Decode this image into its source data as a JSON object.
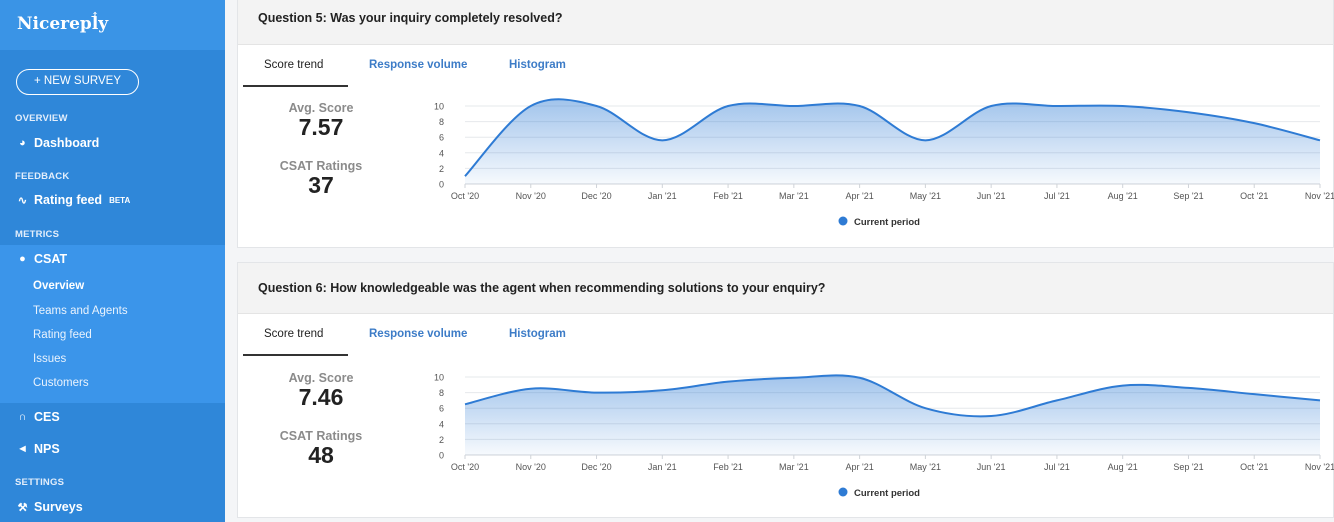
{
  "sidebar": {
    "brand": "Nicereply",
    "new_survey": "+ NEW SURVEY",
    "sections": {
      "overview": "OVERVIEW",
      "feedback": "FEEDBACK",
      "metrics": "METRICS",
      "settings": "SETTINGS"
    },
    "dashboard": "Dashboard",
    "rating_feed": "Rating feed",
    "beta": "BETA",
    "csat": "CSAT",
    "csat_sub": [
      "Overview",
      "Teams and Agents",
      "Rating feed",
      "Issues",
      "Customers"
    ],
    "ces": "CES",
    "nps": "NPS",
    "surveys": "Surveys",
    "icons": {
      "dashboard": "gauge-icon",
      "rating_feed": "rss-icon",
      "csat": "speech-bubble-icon",
      "ces": "ces-icon",
      "nps": "megaphone-icon",
      "surveys": "wrench-icon"
    }
  },
  "tabs": [
    "Score trend",
    "Response volume",
    "Histogram"
  ],
  "colors": {
    "line": "#2e7bd4",
    "accent": "#3d7cc7",
    "sidebar": "#2f87d9"
  },
  "questions": [
    {
      "title": "Question 5: Was your inquiry completely resolved?",
      "avg_label": "Avg. Score",
      "avg_value": "7.57",
      "ratings_label": "CSAT Ratings",
      "ratings_value": "37",
      "legend": "Current period"
    },
    {
      "title": "Question 6: How knowledgeable was the agent when recommending solutions to your enquiry?",
      "avg_label": "Avg. Score",
      "avg_value": "7.46",
      "ratings_label": "CSAT Ratings",
      "ratings_value": "48",
      "legend": "Current period"
    }
  ],
  "chart_data": [
    {
      "type": "area",
      "categories": [
        "Oct '20",
        "Nov '20",
        "Dec '20",
        "Jan '21",
        "Feb '21",
        "Mar '21",
        "Apr '21",
        "May '21",
        "Jun '21",
        "Jul '21",
        "Aug '21",
        "Sep '21",
        "Oct '21",
        "Nov '21"
      ],
      "series": [
        {
          "name": "Current period",
          "values": [
            1,
            10,
            10,
            5.6,
            10,
            10,
            10,
            5.6,
            10,
            10,
            10,
            9.2,
            7.8,
            5.6
          ]
        }
      ],
      "yticks": [
        0,
        2,
        4,
        6,
        8,
        10
      ],
      "ylim": [
        0,
        10
      ],
      "grid": true,
      "legend": "bottom"
    },
    {
      "type": "area",
      "categories": [
        "Oct '20",
        "Nov '20",
        "Dec '20",
        "Jan '21",
        "Feb '21",
        "Mar '21",
        "Apr '21",
        "May '21",
        "Jun '21",
        "Jul '21",
        "Aug '21",
        "Sep '21",
        "Oct '21",
        "Nov '21"
      ],
      "series": [
        {
          "name": "Current period",
          "values": [
            6.5,
            8.5,
            8.0,
            8.3,
            9.4,
            9.9,
            9.9,
            6.0,
            5.0,
            7.0,
            8.9,
            8.6,
            7.8,
            7.0
          ]
        }
      ],
      "yticks": [
        0,
        2,
        4,
        6,
        8,
        10
      ],
      "ylim": [
        0,
        10
      ],
      "grid": true,
      "legend": "bottom"
    }
  ]
}
